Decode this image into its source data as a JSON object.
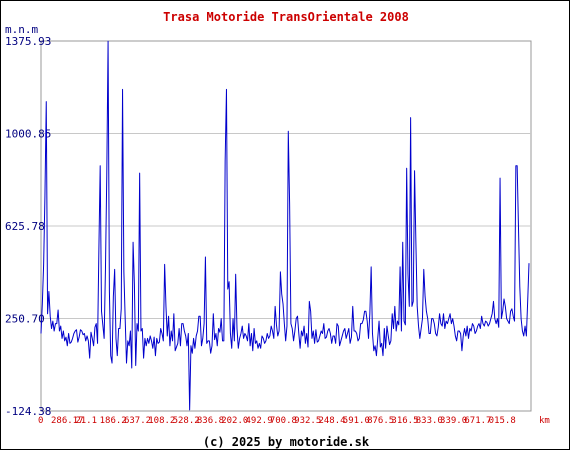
{
  "chart_data": {
    "type": "line",
    "title": "Trasa Motoride TransOrientale 2008",
    "ylabel": "m.n.m",
    "xlabel": "km",
    "footer": "(c) 2025 by motoride.sk",
    "ylim": [
      -124.38,
      1375.93
    ],
    "xlim": [
      0,
      4985
    ],
    "y_ticks": [
      "1375.93",
      "1000.85",
      "625.78",
      "250.70",
      "-124.38"
    ],
    "x_ticks": [
      "0",
      "286.17",
      "21.1",
      "186.2",
      "637.2",
      "108.2",
      "528.2",
      "836.8",
      "202.0",
      "492.9",
      "700.8",
      "932.5",
      "248.4",
      "591.0",
      "876.5",
      "316.5",
      "833.0",
      "339.0",
      "671.7",
      "015.8"
    ],
    "grid": true,
    "colors": {
      "line": "#0000cc",
      "grid": "#c8c8c8",
      "frame": "#999999",
      "title": "#cc0000",
      "y_labels": "#000080",
      "x_labels": "#cc0000"
    },
    "series": [
      {
        "values": [
          190,
          310,
          470,
          750,
          1130,
          270,
          360,
          260,
          210,
          240,
          200,
          230,
          230,
          285,
          200,
          220,
          170,
          200,
          160,
          175,
          140,
          190,
          150,
          155,
          170,
          190,
          200,
          205,
          155,
          175,
          205,
          200,
          185,
          190,
          160,
          180,
          160,
          90,
          195,
          170,
          140,
          215,
          230,
          150,
          530,
          870,
          280,
          225,
          170,
          450,
          830,
          1375,
          360,
          100,
          70,
          340,
          450,
          170,
          100,
          210,
          210,
          290,
          1180,
          440,
          250,
          70,
          160,
          140,
          200,
          50,
          560,
          390,
          60,
          230,
          200,
          840,
          200,
          210,
          90,
          170,
          140,
          170,
          150,
          180,
          160,
          130,
          175,
          100,
          170,
          150,
          155,
          210,
          190,
          160,
          470,
          300,
          180,
          260,
          140,
          200,
          160,
          270,
          120,
          135,
          150,
          210,
          140,
          230,
          230,
          200,
          180,
          140,
          190,
          -120,
          140,
          110,
          170,
          130,
          180,
          200,
          260,
          260,
          140,
          170,
          230,
          500,
          150,
          160,
          160,
          110,
          140,
          270,
          165,
          190,
          140,
          210,
          195,
          250,
          160,
          160,
          890,
          1180,
          370,
          400,
          190,
          130,
          250,
          160,
          430,
          210,
          130,
          170,
          190,
          220,
          170,
          190,
          180,
          160,
          230,
          140,
          190,
          120,
          210,
          150,
          160,
          130,
          150,
          130,
          180,
          170,
          150,
          160,
          190,
          170,
          180,
          220,
          200,
          170,
          300,
          225,
          180,
          200,
          440,
          350,
          310,
          230,
          160,
          220,
          1010,
          720,
          230,
          210,
          160,
          200,
          250,
          260,
          190,
          130,
          200,
          180,
          220,
          150,
          190,
          135,
          320,
          280,
          170,
          200,
          150,
          205,
          155,
          160,
          180,
          200,
          190,
          230,
          170,
          175,
          200,
          210,
          190,
          150,
          180,
          180,
          150,
          230,
          220,
          140,
          160,
          180,
          200,
          210,
          170,
          190,
          210,
          150,
          175,
          300,
          200,
          200,
          190,
          160,
          170,
          230,
          230,
          245,
          280,
          280,
          240,
          170,
          270,
          460,
          190,
          120,
          140,
          100,
          170,
          240,
          135,
          150,
          100,
          210,
          130,
          220,
          180,
          145,
          160,
          270,
          210,
          300,
          200,
          240,
          225,
          460,
          200,
          560,
          240,
          225,
          860,
          430,
          300,
          1065,
          300,
          320,
          850,
          560,
          300,
          220,
          170,
          210,
          250,
          450,
          340,
          280,
          250,
          190,
          190,
          250,
          250,
          230,
          190,
          180,
          215,
          270,
          230,
          220,
          270,
          210,
          240,
          230,
          250,
          270,
          230,
          250,
          220,
          180,
          160,
          200,
          200,
          190,
          120,
          180,
          210,
          180,
          220,
          170,
          210,
          200,
          230,
          220,
          190,
          200,
          220,
          230,
          210,
          260,
          230,
          220,
          240,
          235,
          220,
          230,
          250,
          270,
          320,
          250,
          230,
          250,
          215,
          820,
          250,
          280,
          330,
          300,
          250,
          240,
          230,
          280,
          290,
          260,
          240,
          870,
          870,
          620,
          380,
          250,
          200,
          180,
          220,
          180,
          320,
          475
        ]
      }
    ]
  }
}
